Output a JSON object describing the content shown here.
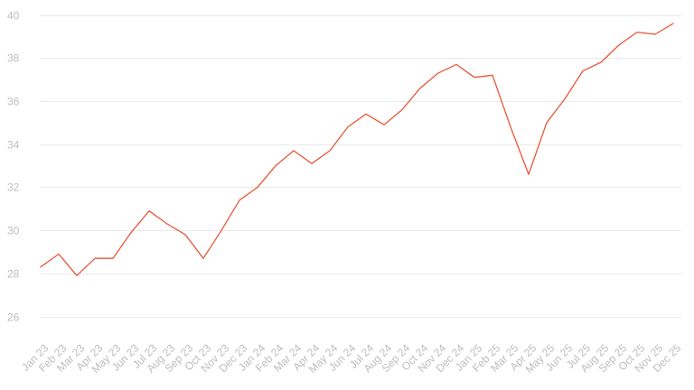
{
  "chart_data": {
    "type": "line",
    "title": "",
    "xlabel": "",
    "ylabel": "",
    "categories": [
      "Jan 23",
      "Feb 23",
      "Mar 23",
      "Apr 23",
      "May 23",
      "Jun 23",
      "Jul 23",
      "Aug 23",
      "Sep 23",
      "Oct 23",
      "Nov 23",
      "Dec 23",
      "Jan 24",
      "Feb 24",
      "Mar 24",
      "Apr 24",
      "May 24",
      "Jun 24",
      "Jul 24",
      "Aug 24",
      "Sep 24",
      "Oct 24",
      "Nov 24",
      "Dec 24",
      "Jan 25",
      "Feb 25",
      "Mar 25",
      "Apr 25",
      "May 25",
      "Jun 25",
      "Jul 25",
      "Aug 25",
      "Sep 25",
      "Oct 25",
      "Nov 25",
      "Dec 25"
    ],
    "series": [
      {
        "color": "#e8563a",
        "values": [
          28.3,
          28.9,
          27.9,
          28.7,
          28.7,
          29.9,
          30.9,
          30.3,
          29.8,
          28.7,
          30.0,
          31.4,
          32.0,
          33.0,
          33.7,
          33.1,
          33.7,
          34.8,
          35.4,
          34.9,
          35.6,
          36.6,
          37.3,
          37.7,
          37.1,
          37.2,
          34.8,
          32.6,
          35.0,
          36.1,
          37.4,
          37.8,
          38.6,
          39.2,
          39.1,
          39.6
        ]
      }
    ],
    "ylim": [
      25,
      40
    ],
    "yticks": [
      26,
      28,
      30,
      32,
      34,
      36,
      38,
      40
    ],
    "grid": true,
    "legend": "none"
  }
}
